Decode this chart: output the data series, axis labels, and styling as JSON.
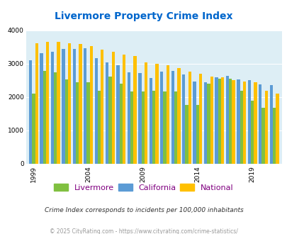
{
  "title": "Livermore Property Crime Index",
  "subtitle": "Crime Index corresponds to incidents per 100,000 inhabitants",
  "footer": "© 2025 CityRating.com - https://www.cityrating.com/crime-statistics/",
  "years": [
    1999,
    2000,
    2001,
    2002,
    2003,
    2004,
    2005,
    2006,
    2007,
    2008,
    2009,
    2010,
    2011,
    2012,
    2013,
    2014,
    2015,
    2016,
    2017,
    2018,
    2019,
    2020,
    2021
  ],
  "livermore": [
    2100,
    2780,
    2750,
    2540,
    2440,
    2450,
    2190,
    2620,
    2400,
    2160,
    2160,
    2200,
    2170,
    2160,
    1760,
    1760,
    2400,
    2560,
    2550,
    2180,
    1900,
    1680,
    1690
  ],
  "california": [
    3100,
    3310,
    3360,
    3450,
    3440,
    3460,
    3160,
    3050,
    2950,
    2750,
    2730,
    2580,
    2760,
    2790,
    2690,
    2470,
    2450,
    2600,
    2640,
    2520,
    2510,
    2390,
    2360
  ],
  "national": [
    3620,
    3650,
    3650,
    3620,
    3590,
    3530,
    3420,
    3350,
    3270,
    3240,
    3050,
    2990,
    2950,
    2870,
    2760,
    2700,
    2620,
    2590,
    2510,
    2470,
    2450,
    2200,
    2100
  ],
  "livermore_color": "#80c040",
  "california_color": "#5b9bd5",
  "national_color": "#ffc000",
  "bg_color": "#ddeef5",
  "title_color": "#0066cc",
  "ylim": [
    0,
    4000
  ],
  "yticks": [
    0,
    1000,
    2000,
    3000,
    4000
  ],
  "bar_width": 0.28,
  "shown_years": [
    1999,
    2004,
    2009,
    2014,
    2019
  ],
  "legend_labels": [
    "Livermore",
    "California",
    "National"
  ],
  "legend_label_color": "#800080"
}
